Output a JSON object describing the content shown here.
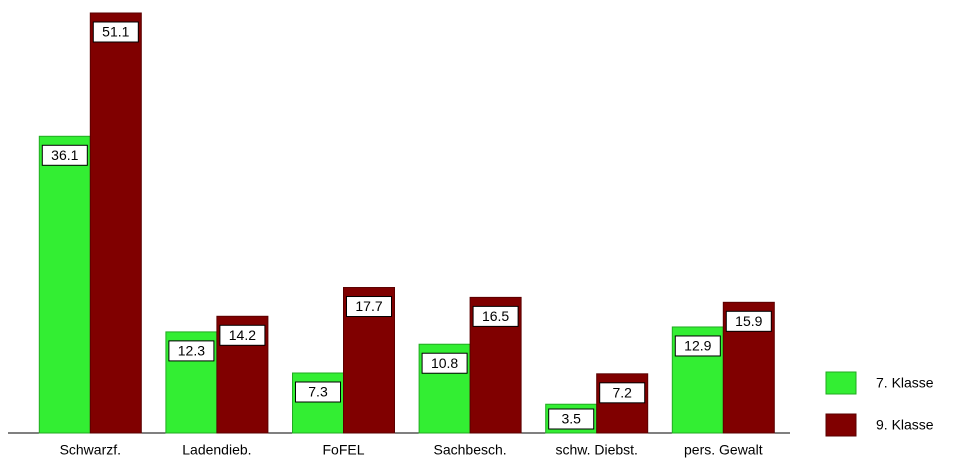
{
  "chart_data": {
    "type": "bar",
    "categories": [
      "Schwarzf.",
      "Ladendieb.",
      "FoFEL",
      "Sachbesch.",
      "schw. Diebst.",
      "pers. Gewalt"
    ],
    "series": [
      {
        "name": "7. Klasse",
        "color": "#33ee33",
        "values": [
          36.1,
          12.3,
          7.3,
          10.8,
          3.5,
          12.9
        ]
      },
      {
        "name": "9. Klasse",
        "color": "#800000",
        "values": [
          51.1,
          14.2,
          17.7,
          16.5,
          7.2,
          15.9
        ]
      }
    ]
  }
}
